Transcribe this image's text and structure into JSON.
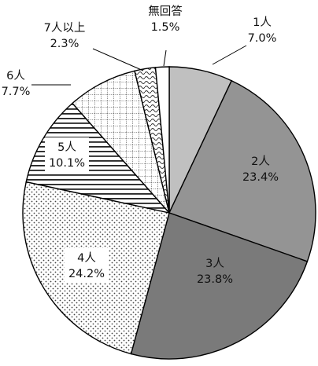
{
  "chart_data": {
    "type": "pie",
    "title": "",
    "start": "top",
    "direction": "clockwise",
    "slices": [
      {
        "label": "1人",
        "value": 7.0,
        "pct_text": "7.0%",
        "fill": "#c0c0c0",
        "pattern": "solid"
      },
      {
        "label": "2人",
        "value": 23.4,
        "pct_text": "23.4%",
        "fill": "#949494",
        "pattern": "solid"
      },
      {
        "label": "3人",
        "value": 23.8,
        "pct_text": "23.8%",
        "fill": "#7a7a7a",
        "pattern": "solid"
      },
      {
        "label": "4人",
        "value": 24.2,
        "pct_text": "24.2%",
        "fill": "#ffffff",
        "pattern": "dots"
      },
      {
        "label": "5人",
        "value": 10.1,
        "pct_text": "10.1%",
        "fill": "#ffffff",
        "pattern": "hlines"
      },
      {
        "label": "6人",
        "value": 7.7,
        "pct_text": "7.7%",
        "fill": "#ffffff",
        "pattern": "grid-dots"
      },
      {
        "label": "7人以上",
        "value": 2.3,
        "pct_text": "2.3%",
        "fill": "#ffffff",
        "pattern": "waves"
      },
      {
        "label": "無回答",
        "value": 1.5,
        "pct_text": "1.5%",
        "fill": "#ffffff",
        "pattern": "solid"
      }
    ]
  }
}
